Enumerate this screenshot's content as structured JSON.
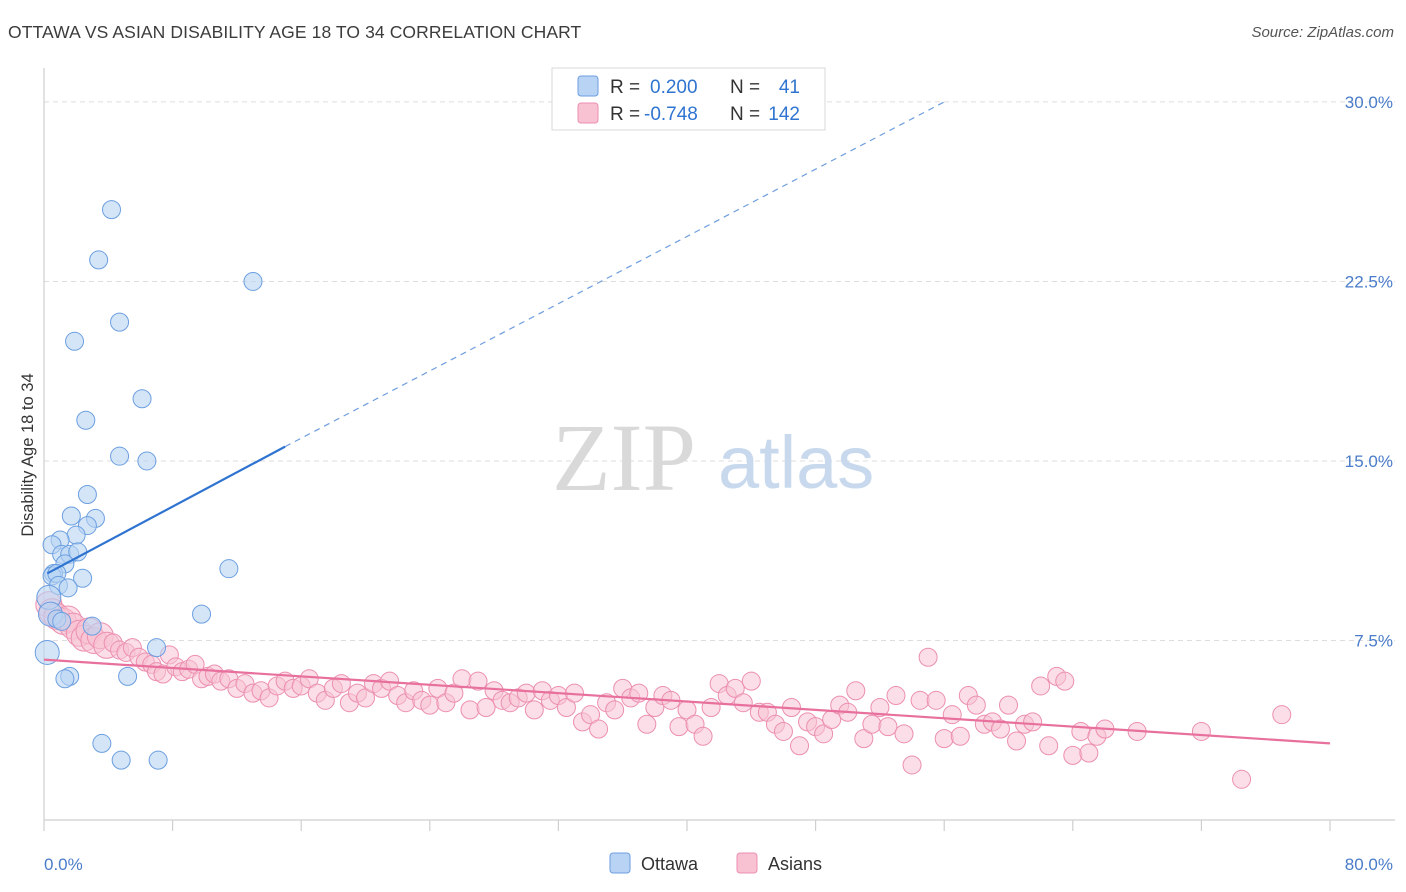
{
  "header": {
    "title": "OTTAWA VS ASIAN DISABILITY AGE 18 TO 34 CORRELATION CHART",
    "source": "Source: ZipAtlas.com"
  },
  "watermark": {
    "zip": "ZIP",
    "atlas": "atlas"
  },
  "colors": {
    "ottawa_fill": "#b8d3f3",
    "ottawa_stroke": "#6c9fe0",
    "ottawa_line": "#2f74d0",
    "asians_fill": "#f8c2d3",
    "asians_stroke": "#ec8fb0",
    "asians_line": "#e8709d",
    "tick_text": "#4a7cc9",
    "grid": "#dddddd"
  },
  "stats_legend": [
    {
      "r_label": "R =",
      "r_value": "0.200",
      "n_label": "N =",
      "n_value": "41"
    },
    {
      "r_label": "R =",
      "r_value": "-0.748",
      "n_label": "N =",
      "n_value": "142"
    }
  ],
  "chart_data": {
    "type": "scatter",
    "title": "OTTAWA VS ASIAN DISABILITY AGE 18 TO 34 CORRELATION CHART",
    "xlabel": "",
    "ylabel": "Disability Age 18 to 34",
    "xlim": [
      0,
      80
    ],
    "ylim": [
      0,
      31
    ],
    "x_tick_labels": [
      "0.0%",
      "80.0%"
    ],
    "y_ticks": [
      7.5,
      15.0,
      22.5,
      30.0
    ],
    "y_tick_labels": [
      "7.5%",
      "15.0%",
      "22.5%",
      "30.0%"
    ],
    "grid": "horizontal dashed",
    "legend_position": "bottom-center",
    "series": [
      {
        "name": "Ottawa",
        "points": [
          [
            4.2,
            25.5
          ],
          [
            3.4,
            23.4
          ],
          [
            13.0,
            22.5
          ],
          [
            4.7,
            20.8
          ],
          [
            1.9,
            20.0
          ],
          [
            6.1,
            17.6
          ],
          [
            2.6,
            16.7
          ],
          [
            4.7,
            15.2
          ],
          [
            6.4,
            15.0
          ],
          [
            2.7,
            13.6
          ],
          [
            1.7,
            12.7
          ],
          [
            3.2,
            12.6
          ],
          [
            2.7,
            12.3
          ],
          [
            2.0,
            11.9
          ],
          [
            1.0,
            11.7
          ],
          [
            0.5,
            11.5
          ],
          [
            1.1,
            11.1
          ],
          [
            1.6,
            11.1
          ],
          [
            2.1,
            11.2
          ],
          [
            1.3,
            10.7
          ],
          [
            11.5,
            10.5
          ],
          [
            0.6,
            10.3
          ],
          [
            0.5,
            10.2
          ],
          [
            0.8,
            10.3
          ],
          [
            2.4,
            10.1
          ],
          [
            0.9,
            9.8
          ],
          [
            1.5,
            9.7
          ],
          [
            0.3,
            9.3
          ],
          [
            9.8,
            8.6
          ],
          [
            0.4,
            8.6
          ],
          [
            0.8,
            8.4
          ],
          [
            1.1,
            8.3
          ],
          [
            3.0,
            8.1
          ],
          [
            0.2,
            7.0
          ],
          [
            7.0,
            7.2
          ],
          [
            1.6,
            6.0
          ],
          [
            1.3,
            5.9
          ],
          [
            5.2,
            6.0
          ],
          [
            3.6,
            3.2
          ],
          [
            4.8,
            2.5
          ],
          [
            7.1,
            2.5
          ]
        ],
        "trend_solid": [
          [
            0.2,
            10.3
          ],
          [
            15.0,
            15.6
          ]
        ],
        "trend_dashed": [
          [
            15.0,
            15.6
          ],
          [
            56.0,
            30.0
          ]
        ]
      },
      {
        "name": "Asians",
        "points": [
          [
            0.3,
            9.0
          ],
          [
            0.5,
            8.7
          ],
          [
            0.8,
            8.5
          ],
          [
            1.2,
            8.3
          ],
          [
            1.5,
            8.4
          ],
          [
            1.8,
            8.1
          ],
          [
            2.2,
            7.8
          ],
          [
            2.5,
            7.6
          ],
          [
            2.8,
            7.9
          ],
          [
            3.1,
            7.5
          ],
          [
            3.5,
            7.7
          ],
          [
            3.9,
            7.3
          ],
          [
            4.3,
            7.4
          ],
          [
            4.7,
            7.1
          ],
          [
            5.1,
            7.0
          ],
          [
            5.5,
            7.2
          ],
          [
            5.9,
            6.8
          ],
          [
            6.3,
            6.6
          ],
          [
            6.7,
            6.5
          ],
          [
            7.0,
            6.2
          ],
          [
            7.4,
            6.1
          ],
          [
            7.8,
            6.9
          ],
          [
            8.2,
            6.4
          ],
          [
            8.6,
            6.2
          ],
          [
            9.0,
            6.3
          ],
          [
            9.4,
            6.5
          ],
          [
            9.8,
            5.9
          ],
          [
            10.2,
            6.0
          ],
          [
            10.6,
            6.1
          ],
          [
            11.0,
            5.8
          ],
          [
            11.5,
            5.9
          ],
          [
            12.0,
            5.5
          ],
          [
            12.5,
            5.7
          ],
          [
            13.0,
            5.3
          ],
          [
            13.5,
            5.4
          ],
          [
            14.0,
            5.1
          ],
          [
            14.5,
            5.6
          ],
          [
            15.0,
            5.8
          ],
          [
            15.5,
            5.5
          ],
          [
            16.0,
            5.6
          ],
          [
            16.5,
            5.9
          ],
          [
            17.0,
            5.3
          ],
          [
            17.5,
            5.0
          ],
          [
            18.0,
            5.5
          ],
          [
            18.5,
            5.7
          ],
          [
            19.0,
            4.9
          ],
          [
            19.5,
            5.3
          ],
          [
            20.0,
            5.1
          ],
          [
            20.5,
            5.7
          ],
          [
            21.0,
            5.5
          ],
          [
            21.5,
            5.8
          ],
          [
            22.0,
            5.2
          ],
          [
            22.5,
            4.9
          ],
          [
            23.0,
            5.4
          ],
          [
            23.5,
            5.0
          ],
          [
            24.0,
            4.8
          ],
          [
            24.5,
            5.5
          ],
          [
            25.0,
            4.9
          ],
          [
            25.5,
            5.3
          ],
          [
            26.0,
            5.9
          ],
          [
            26.5,
            4.6
          ],
          [
            27.0,
            5.8
          ],
          [
            27.5,
            4.7
          ],
          [
            28.0,
            5.4
          ],
          [
            28.5,
            5.0
          ],
          [
            29.0,
            4.9
          ],
          [
            29.5,
            5.1
          ],
          [
            30.0,
            5.3
          ],
          [
            30.5,
            4.6
          ],
          [
            31.0,
            5.4
          ],
          [
            31.5,
            5.0
          ],
          [
            32.0,
            5.2
          ],
          [
            32.5,
            4.7
          ],
          [
            33.0,
            5.3
          ],
          [
            33.5,
            4.1
          ],
          [
            34.0,
            4.4
          ],
          [
            34.5,
            3.8
          ],
          [
            35.0,
            4.9
          ],
          [
            35.5,
            4.6
          ],
          [
            36.0,
            5.5
          ],
          [
            36.5,
            5.1
          ],
          [
            37.0,
            5.3
          ],
          [
            37.5,
            4.0
          ],
          [
            38.0,
            4.7
          ],
          [
            38.5,
            5.2
          ],
          [
            39.0,
            5.0
          ],
          [
            39.5,
            3.9
          ],
          [
            40.0,
            4.6
          ],
          [
            40.5,
            4.0
          ],
          [
            41.0,
            3.5
          ],
          [
            41.5,
            4.7
          ],
          [
            42.0,
            5.7
          ],
          [
            42.5,
            5.2
          ],
          [
            43.0,
            5.5
          ],
          [
            43.5,
            4.9
          ],
          [
            44.0,
            5.8
          ],
          [
            44.5,
            4.5
          ],
          [
            45.0,
            4.5
          ],
          [
            45.5,
            4.0
          ],
          [
            46.0,
            3.7
          ],
          [
            46.5,
            4.7
          ],
          [
            47.0,
            3.1
          ],
          [
            47.5,
            4.1
          ],
          [
            48.0,
            3.9
          ],
          [
            48.5,
            3.6
          ],
          [
            49.0,
            4.2
          ],
          [
            49.5,
            4.8
          ],
          [
            50.0,
            4.5
          ],
          [
            50.5,
            5.4
          ],
          [
            51.0,
            3.4
          ],
          [
            51.5,
            4.0
          ],
          [
            52.0,
            4.7
          ],
          [
            52.5,
            3.9
          ],
          [
            53.0,
            5.2
          ],
          [
            53.5,
            3.6
          ],
          [
            54.0,
            2.3
          ],
          [
            54.5,
            5.0
          ],
          [
            55.0,
            6.8
          ],
          [
            55.5,
            5.0
          ],
          [
            56.0,
            3.4
          ],
          [
            56.5,
            4.4
          ],
          [
            57.0,
            3.5
          ],
          [
            57.5,
            5.2
          ],
          [
            58.0,
            4.8
          ],
          [
            58.5,
            4.0
          ],
          [
            59.0,
            4.1
          ],
          [
            59.5,
            3.8
          ],
          [
            60.0,
            4.8
          ],
          [
            60.5,
            3.3
          ],
          [
            61.0,
            4.0
          ],
          [
            61.5,
            4.1
          ],
          [
            62.0,
            5.6
          ],
          [
            62.5,
            3.1
          ],
          [
            63.0,
            6.0
          ],
          [
            63.5,
            5.8
          ],
          [
            64.0,
            2.7
          ],
          [
            64.5,
            3.7
          ],
          [
            65.0,
            2.8
          ],
          [
            65.5,
            3.5
          ],
          [
            66.0,
            3.8
          ],
          [
            74.5,
            1.7
          ],
          [
            72.0,
            3.7
          ],
          [
            77.0,
            4.4
          ],
          [
            68.0,
            3.7
          ]
        ],
        "trend_solid": [
          [
            0.0,
            6.7
          ],
          [
            80.0,
            3.2
          ]
        ]
      }
    ]
  },
  "bottom_legend": [
    {
      "label": "Ottawa"
    },
    {
      "label": "Asians"
    }
  ]
}
